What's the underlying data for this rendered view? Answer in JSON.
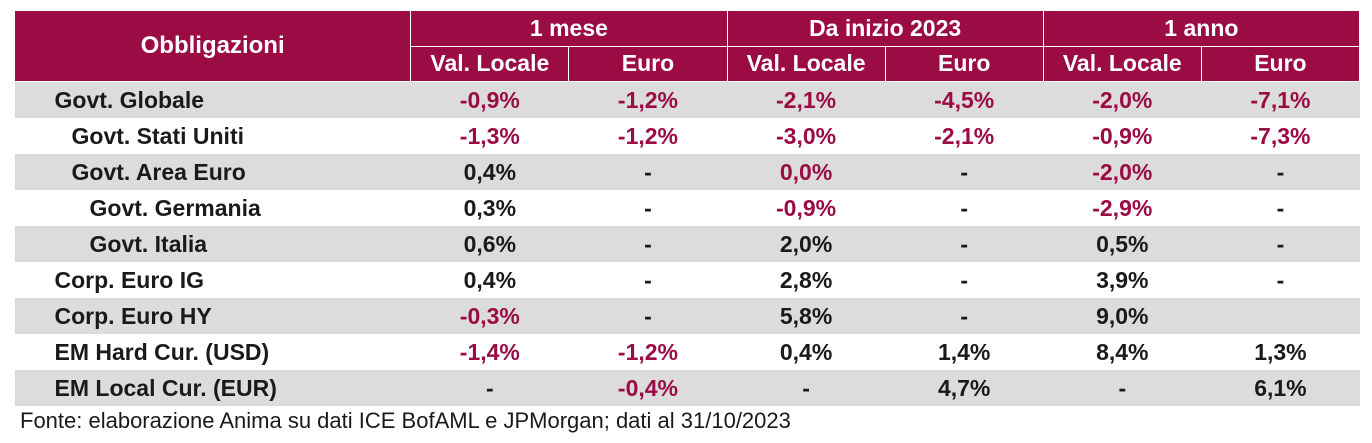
{
  "table": {
    "corner_label": "Obbligazioni",
    "groups": [
      "1 mese",
      "Da inizio 2023",
      "1 anno"
    ],
    "subheaders": [
      "Val. Locale",
      "Euro",
      "Val. Locale",
      "Euro",
      "Val. Locale",
      "Euro"
    ],
    "rows": [
      {
        "label": "Govt. Globale",
        "indent": 1,
        "cells": [
          "-0,9%",
          "-1,2%",
          "-2,1%",
          "-4,5%",
          "-2,0%",
          "-7,1%"
        ]
      },
      {
        "label": "Govt. Stati Uniti",
        "indent": 2,
        "cells": [
          "-1,3%",
          "-1,2%",
          "-3,0%",
          "-2,1%",
          "-0,9%",
          "-7,3%"
        ]
      },
      {
        "label": "Govt. Area Euro",
        "indent": 2,
        "cells": [
          "0,4%",
          "-",
          "0,0%",
          "-",
          "-2,0%",
          "-"
        ]
      },
      {
        "label": "Govt. Germania",
        "indent": 3,
        "cells": [
          "0,3%",
          "-",
          "-0,9%",
          "-",
          "-2,9%",
          "-"
        ]
      },
      {
        "label": "Govt. Italia",
        "indent": 3,
        "cells": [
          "0,6%",
          "-",
          "2,0%",
          "-",
          "0,5%",
          "-"
        ]
      },
      {
        "label": "Corp. Euro IG",
        "indent": 1,
        "cells": [
          "0,4%",
          "-",
          "2,8%",
          "-",
          "3,9%",
          "-"
        ]
      },
      {
        "label": "Corp. Euro HY",
        "indent": 1,
        "cells": [
          "-0,3%",
          "-",
          "5,8%",
          "-",
          "9,0%",
          ""
        ]
      },
      {
        "label": "EM Hard Cur. (USD)",
        "indent": 1,
        "cells": [
          "-1,4%",
          "-1,2%",
          "0,4%",
          "1,4%",
          "8,4%",
          "1,3%"
        ]
      },
      {
        "label": "EM Local Cur. (EUR)",
        "indent": 1,
        "cells": [
          "-",
          "-0,4%",
          "-",
          "4,7%",
          "-",
          "6,1%"
        ]
      }
    ],
    "negative_cells": [
      [
        true,
        true,
        true,
        true,
        true,
        true
      ],
      [
        true,
        true,
        true,
        true,
        true,
        true
      ],
      [
        false,
        false,
        true,
        false,
        true,
        false
      ],
      [
        false,
        false,
        true,
        false,
        true,
        false
      ],
      [
        false,
        false,
        false,
        false,
        false,
        false
      ],
      [
        false,
        false,
        false,
        false,
        false,
        false
      ],
      [
        true,
        false,
        false,
        false,
        false,
        false
      ],
      [
        true,
        true,
        false,
        false,
        false,
        false
      ],
      [
        false,
        true,
        false,
        false,
        false,
        false
      ]
    ]
  },
  "source_note": "Fonte: elaborazione Anima su dati ICE BofAML e JPMorgan; dati al 31/10/2023",
  "colors": {
    "header_bg": "#9b0c45",
    "negative_text": "#9b0c45",
    "row_shade": "#dcdcdc"
  }
}
